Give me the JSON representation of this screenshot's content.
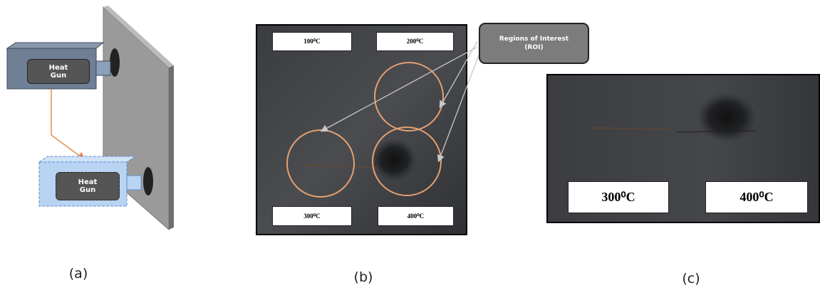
{
  "panels": [
    {
      "label": "(a)",
      "heat_gun_labels": [
        "Heat Gun",
        "Heat Gun"
      ]
    },
    {
      "label": "(b)",
      "temperature_labels": [
        "100⁰C",
        "200⁰C",
        "300⁰C",
        "400⁰C"
      ],
      "callout": "Regions of Interest (ROI)"
    },
    {
      "label": "(c)",
      "temperature_labels": [
        "300⁰C",
        "400⁰C"
      ]
    }
  ]
}
